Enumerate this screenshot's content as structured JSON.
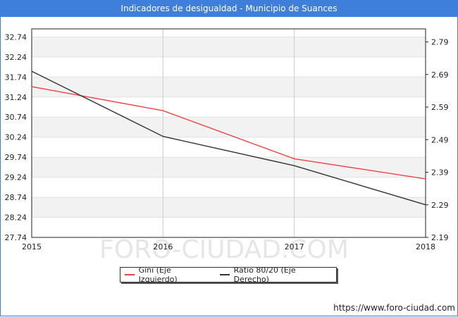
{
  "header": {
    "title": "Indicadores de desigualdad - Municipio de Suances"
  },
  "footer": {
    "url": "https://www.foro-ciudad.com"
  },
  "watermark": "FORO-CIUDAD.COM",
  "colors": {
    "gini": "#ee4444",
    "ratio": "#333333",
    "header": "#3f7fdc"
  },
  "chart_data": {
    "type": "line",
    "x": [
      "2015",
      "2016",
      "2017",
      "2018"
    ],
    "y_left_ticks": [
      "32.74",
      "32.24",
      "31.74",
      "31.24",
      "30.74",
      "30.24",
      "29.74",
      "29.24",
      "28.74",
      "28.24",
      "27.74"
    ],
    "y_right_ticks": [
      "2.79",
      "2.69",
      "2.59",
      "2.49",
      "2.39",
      "2.29",
      "2.19"
    ],
    "ylim_left": [
      27.74,
      32.94
    ],
    "ylim_right": [
      2.19,
      2.83
    ],
    "grid": true,
    "legend_position": "bottom-center",
    "series": [
      {
        "name": "Gini (Eje Izquierdo)",
        "axis": "left",
        "values": [
          31.5,
          30.9,
          29.7,
          29.2
        ]
      },
      {
        "name": "Ratio 80/20 (Eje Derecho)",
        "axis": "right",
        "values": [
          2.7,
          2.5,
          2.41,
          2.29
        ]
      }
    ]
  }
}
